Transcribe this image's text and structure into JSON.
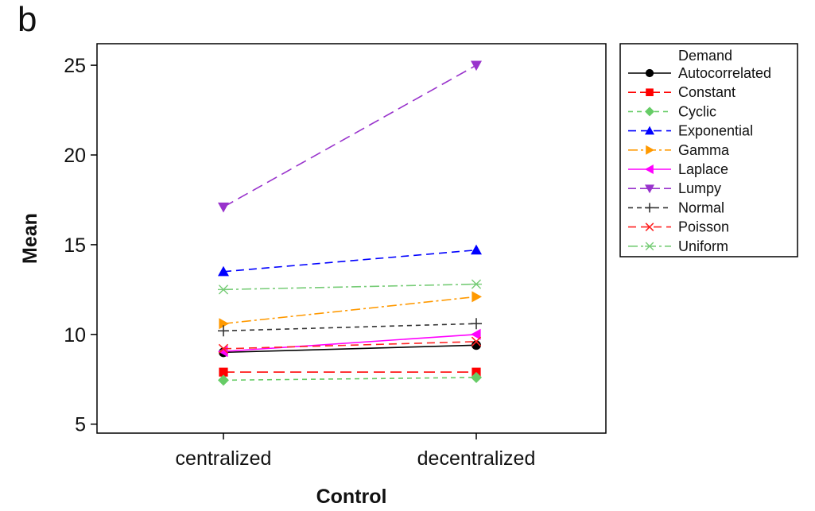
{
  "panel_label": "b",
  "chart_data": {
    "type": "line",
    "title": "",
    "xlabel": "Control",
    "ylabel": "Mean",
    "categories": [
      "centralized",
      "decentralized"
    ],
    "ylim": [
      4.5,
      26.2
    ],
    "yticks": [
      5,
      10,
      15,
      20,
      25
    ],
    "grid": false,
    "legend": {
      "title": "Demand",
      "placement": "right, outside plot"
    },
    "series": [
      {
        "name": "Autocorrelated",
        "values": [
          9.0,
          9.4
        ],
        "color": "#000000",
        "marker": "circle",
        "dash": "solid"
      },
      {
        "name": "Constant",
        "values": [
          7.9,
          7.9
        ],
        "color": "#ff0000",
        "marker": "square",
        "dash": "longdash"
      },
      {
        "name": "Cyclic",
        "values": [
          7.45,
          7.6
        ],
        "color": "#66cc66",
        "marker": "diamond",
        "dash": "shortdash"
      },
      {
        "name": "Exponential",
        "values": [
          13.5,
          14.7
        ],
        "color": "#0000ff",
        "marker": "triangle-up",
        "dash": "dash"
      },
      {
        "name": "Gamma",
        "values": [
          10.6,
          12.1
        ],
        "color": "#ff9900",
        "marker": "triangle-right",
        "dash": "dashdot"
      },
      {
        "name": "Laplace",
        "values": [
          9.05,
          10.0
        ],
        "color": "#ff00ff",
        "marker": "triangle-left",
        "dash": "solid"
      },
      {
        "name": "Lumpy",
        "values": [
          17.1,
          25.0
        ],
        "color": "#9933cc",
        "marker": "triangle-down",
        "dash": "longdash"
      },
      {
        "name": "Normal",
        "values": [
          10.2,
          10.6
        ],
        "color": "#333333",
        "marker": "plus",
        "dash": "shortdash"
      },
      {
        "name": "Poisson",
        "values": [
          9.2,
          9.6
        ],
        "color": "#ff2222",
        "marker": "x",
        "dash": "dash"
      },
      {
        "name": "Uniform",
        "values": [
          12.5,
          12.8
        ],
        "color": "#77cc77",
        "marker": "asterisk",
        "dash": "dashdot"
      }
    ]
  }
}
